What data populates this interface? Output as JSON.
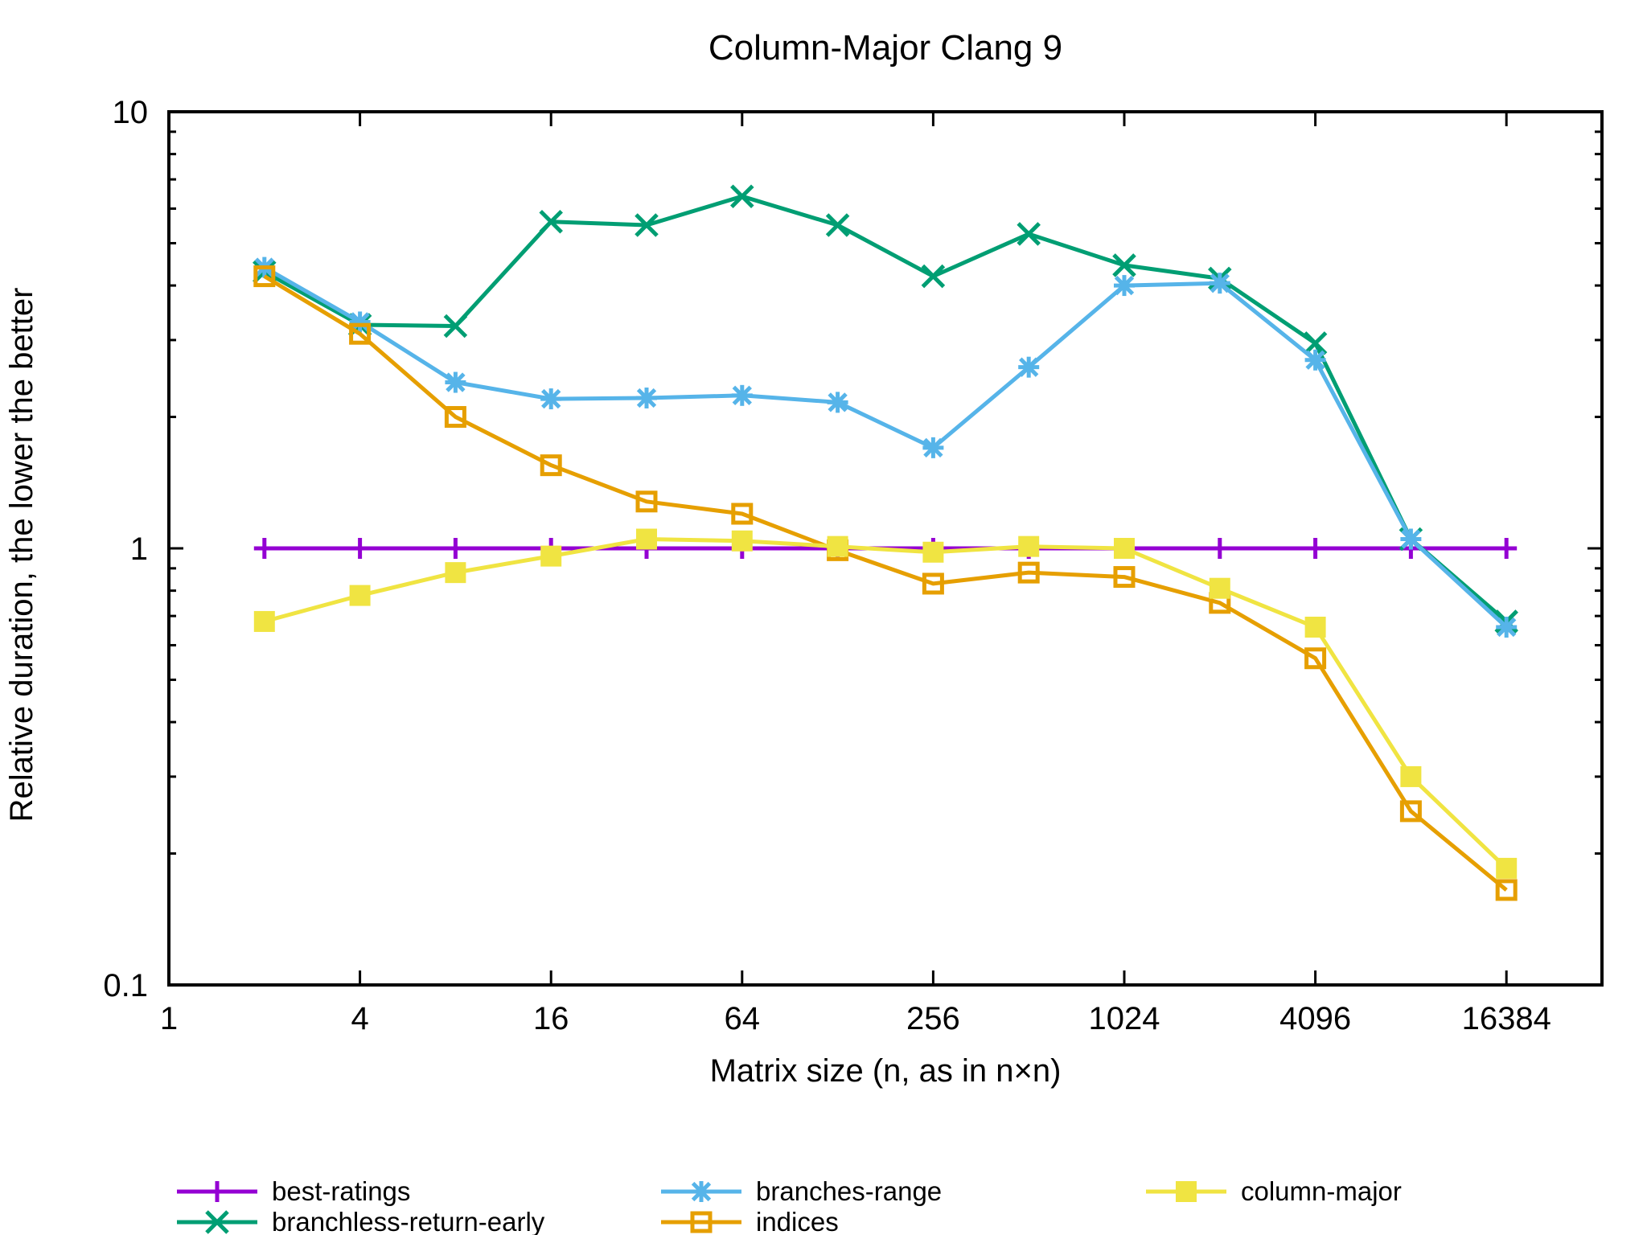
{
  "chart_data": {
    "type": "line",
    "title": "Column-Major Clang 9",
    "xlabel": "Matrix size (n, as in n×n)",
    "ylabel": "Relative duration, the lower the better",
    "x_scale": "log2",
    "y_scale": "log10",
    "xlim": [
      1,
      32768
    ],
    "ylim": [
      0.1,
      10
    ],
    "x_ticks": [
      "1",
      "4",
      "16",
      "64",
      "256",
      "1024",
      "4096",
      "16384"
    ],
    "x_tick_values": [
      1,
      4,
      16,
      64,
      256,
      1024,
      4096,
      16384
    ],
    "y_ticks": [
      "0.1",
      "1",
      "10"
    ],
    "y_tick_values": [
      0.1,
      1,
      10
    ],
    "legend_position": "bottom",
    "x": [
      2,
      4,
      8,
      16,
      32,
      64,
      128,
      256,
      512,
      1024,
      2048,
      4096,
      8192,
      16384
    ],
    "series": [
      {
        "name": "best-ratings",
        "color": "#9400d3",
        "marker": "plus",
        "values": [
          1,
          1,
          1,
          1,
          1,
          1,
          1,
          1,
          1,
          1,
          1,
          1,
          1,
          1
        ]
      },
      {
        "name": "branchless-return-early",
        "color": "#009e73",
        "marker": "cross",
        "values": [
          4.3,
          3.25,
          3.23,
          5.6,
          5.5,
          6.4,
          5.5,
          4.2,
          5.25,
          4.45,
          4.15,
          2.95,
          1.05,
          0.68
        ]
      },
      {
        "name": "branches-range",
        "color": "#56b4e9",
        "marker": "asterisk",
        "values": [
          4.4,
          3.3,
          2.4,
          2.2,
          2.21,
          2.24,
          2.16,
          1.7,
          2.6,
          4.0,
          4.05,
          2.7,
          1.05,
          0.66
        ]
      },
      {
        "name": "indices",
        "color": "#e69f00",
        "marker": "open-square",
        "values": [
          4.2,
          3.1,
          2.0,
          1.55,
          1.28,
          1.2,
          0.99,
          0.83,
          0.88,
          0.86,
          0.75,
          0.56,
          0.25,
          0.165
        ]
      },
      {
        "name": "column-major",
        "color": "#f0e442",
        "marker": "filled-square",
        "values": [
          0.68,
          0.78,
          0.88,
          0.96,
          1.05,
          1.04,
          1.01,
          0.98,
          1.01,
          1.0,
          0.81,
          0.66,
          0.3,
          0.185
        ]
      }
    ]
  }
}
